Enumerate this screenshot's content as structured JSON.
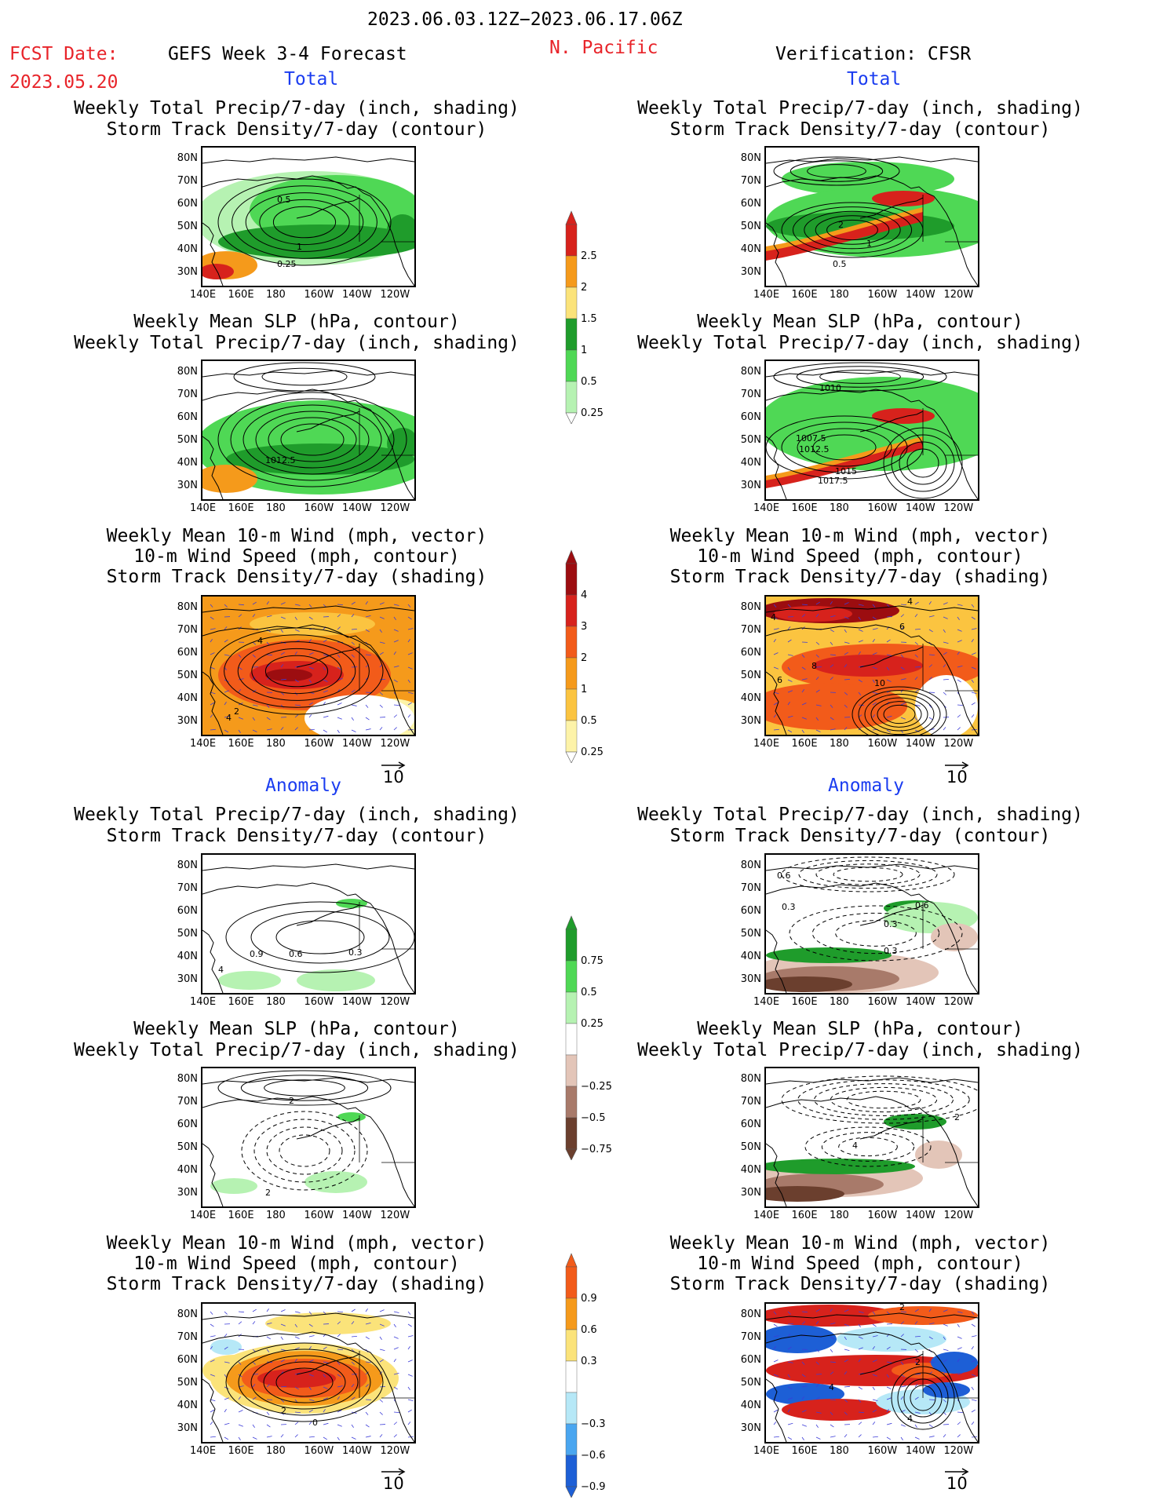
{
  "header": {
    "date_range": "2023.06.03.12Z−2023.06.17.06Z",
    "fcst_label": "FCST Date:",
    "fcst_date": "2023.05.20",
    "model_title": "GEFS Week 3-4 Forecast",
    "region": "N. Pacific",
    "verification": "Verification: CFSR"
  },
  "sections": {
    "total": "Total",
    "anomaly": "Anomaly"
  },
  "titles": {
    "precip_storm": [
      "Weekly Total Precip/7-day (inch, shading)",
      "Storm Track Density/7-day (contour)"
    ],
    "slp_precip": [
      "Weekly Mean SLP (hPa, contour)",
      "Weekly Total Precip/7-day (inch, shading)"
    ],
    "wind_storm": [
      "Weekly Mean 10-m Wind (mph, vector)",
      "10-m Wind Speed (mph, contour)",
      "Storm Track Density/7-day (shading)"
    ]
  },
  "axes": {
    "lat_ticks": [
      "80N",
      "70N",
      "60N",
      "50N",
      "40N",
      "30N"
    ],
    "lon_ticks": [
      "140E",
      "160E",
      "180",
      "160W",
      "140W",
      "120W"
    ]
  },
  "vector_ref": "10",
  "colorbars": {
    "precip_total": {
      "labels": [
        "2.5",
        "2",
        "1.5",
        "1",
        "0.5",
        "0.25"
      ],
      "colors": [
        "#d7221c",
        "#f59a1b",
        "#fbe37a",
        "#1f9c2b",
        "#4fd855",
        "#b6f2b2"
      ]
    },
    "storm_total": {
      "labels": [
        "4",
        "3",
        "2",
        "1",
        "0.5",
        "0.25"
      ],
      "colors": [
        "#9c0d10",
        "#d7221c",
        "#f25b1a",
        "#f59a1b",
        "#fbc440",
        "#fdf3a8"
      ]
    },
    "precip_anom": {
      "labels": [
        "0.75",
        "0.5",
        "0.25",
        "−0.25",
        "−0.5",
        "−0.75"
      ],
      "colors": [
        "#1f9c2b",
        "#4fd855",
        "#b6f2b2",
        "#ffffff",
        "#e3c5b8",
        "#a87a6a",
        "#6b3f2e"
      ]
    },
    "storm_anom": {
      "labels": [
        "0.9",
        "0.6",
        "0.3",
        "−0.3",
        "−0.6",
        "−0.9"
      ],
      "colors": [
        "#f25b1a",
        "#f59a1b",
        "#fbe37a",
        "#ffffff",
        "#b6e8f7",
        "#4aa6f0",
        "#1d5fd6"
      ]
    }
  },
  "contour_labels": {
    "p1": [
      "0.5",
      "1",
      "0.25"
    ],
    "p2": [
      "2",
      "1",
      "0.5"
    ],
    "p3": [
      "1012.5"
    ],
    "p4": [
      "1010",
      "1007.5",
      "1012.5",
      "1015",
      "1017.5"
    ],
    "p5": [
      "4",
      "2",
      "4"
    ],
    "p6": [
      "4",
      "8",
      "6",
      "10",
      "4",
      "6"
    ],
    "p7": [
      "0.9",
      "0.6",
      "0.3",
      "4"
    ],
    "p8": [
      "0.6",
      "0.3",
      "0.6",
      "0.3",
      "0.3"
    ],
    "p9": [
      "2",
      "2"
    ],
    "p10": [
      "4",
      "2"
    ],
    "p11": [
      "0",
      "2"
    ],
    "p12": [
      "2",
      "4",
      "2",
      "4"
    ]
  }
}
